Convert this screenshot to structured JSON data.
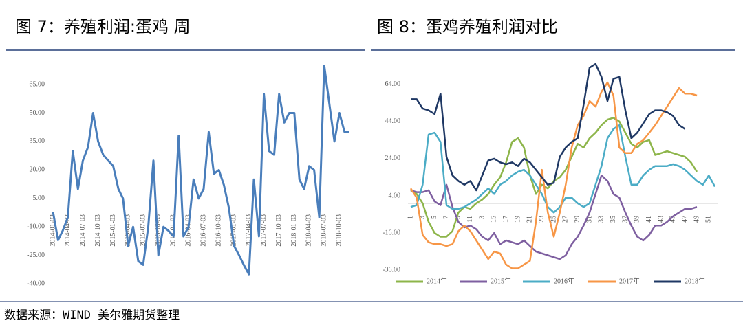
{
  "chart_data": [
    {
      "type": "line",
      "title": "图 7：养殖利润:蛋鸡 周",
      "color": "#4a7ebb",
      "x": [
        "2014-01-03",
        "2014-02-03",
        "2014-03-03",
        "2014-04-03",
        "2014-05-03",
        "2014-06-03",
        "2014-07-03",
        "2014-08-03",
        "2014-09-03",
        "2014-10-03",
        "2014-11-03",
        "2014-12-03",
        "2015-01-03",
        "2015-02-03",
        "2015-03-03",
        "2015-04-03",
        "2015-05-03",
        "2015-06-03",
        "2015-07-03",
        "2015-08-03",
        "2015-09-03",
        "2015-10-03",
        "2015-11-03",
        "2015-12-03",
        "2016-01-03",
        "2016-02-03",
        "2016-03-03",
        "2016-04-03",
        "2016-05-03",
        "2016-06-03",
        "2016-07-03",
        "2016-08-03",
        "2016-09-03",
        "2016-10-03",
        "2016-11-03",
        "2016-12-03",
        "2017-01-03",
        "2017-02-03",
        "2017-03-03",
        "2017-04-03",
        "2017-05-03",
        "2017-06-03",
        "2017-07-03",
        "2017-08-03",
        "2017-09-03",
        "2017-10-03",
        "2017-11-03",
        "2017-12-03",
        "2018-01-03",
        "2018-02-03",
        "2018-03-03",
        "2018-04-03",
        "2018-05-03",
        "2018-06-03",
        "2018-07-03",
        "2018-08-03",
        "2018-09-03",
        "2018-10-03",
        "2018-11-03",
        "2018-12-03"
      ],
      "values": [
        -2,
        -17,
        -12,
        -5,
        30,
        10,
        25,
        32,
        50,
        35,
        28,
        25,
        22,
        10,
        5,
        -20,
        -10,
        -28,
        -30,
        -10,
        25,
        -25,
        -10,
        -12,
        -15,
        38,
        -15,
        -10,
        15,
        5,
        10,
        40,
        18,
        20,
        12,
        0,
        -20,
        -25,
        -30,
        -35,
        15,
        -15,
        60,
        30,
        28,
        60,
        45,
        50,
        50,
        15,
        10,
        22,
        20,
        -5,
        75,
        55,
        35,
        50,
        40,
        40
      ],
      "xticks": [
        "2014-01-03",
        "2014-04-03",
        "2014-07-03",
        "2014-10-03",
        "2015-01-03",
        "2015-04-03",
        "2015-07-03",
        "2015-10-03",
        "2016-01-03",
        "2016-04-03",
        "2016-07-03",
        "2016-10-03",
        "2017-01-03",
        "2017-04-03",
        "2017-07-03",
        "2017-10-03",
        "2018-01-03",
        "2018-04-03",
        "2018-07-03",
        "2018-10-03"
      ],
      "ylim": [
        -40,
        77
      ],
      "yticks": [
        {
          "value": -40,
          "label": "-40.00"
        },
        {
          "value": -25,
          "label": "-25.00"
        },
        {
          "value": -10,
          "label": "-10.00"
        },
        {
          "value": 5,
          "label": "5.00"
        },
        {
          "value": 20,
          "label": "20.00"
        },
        {
          "value": 35,
          "label": "35.00"
        },
        {
          "value": 50,
          "label": "50.00"
        },
        {
          "value": 65,
          "label": "65.00"
        }
      ]
    },
    {
      "type": "line",
      "title": "图 8：蛋鸡养殖利润对比",
      "categories": [
        1,
        null,
        3,
        null,
        5,
        null,
        7,
        null,
        9,
        null,
        11,
        null,
        13,
        null,
        15,
        null,
        17,
        null,
        19,
        null,
        21,
        null,
        23,
        null,
        25,
        null,
        27,
        null,
        29,
        null,
        31,
        null,
        33,
        null,
        35,
        null,
        37,
        null,
        39,
        null,
        41,
        null,
        43,
        null,
        45,
        null,
        47,
        null,
        49,
        null,
        51,
        null
      ],
      "ylim": [
        -40,
        75
      ],
      "yticks": [
        {
          "value": -36,
          "label": "-36.00"
        },
        {
          "value": -16,
          "label": "-16.00"
        },
        {
          "value": 4,
          "label": "4.00"
        },
        {
          "value": 24,
          "label": "24.00"
        },
        {
          "value": 44,
          "label": "44.00"
        },
        {
          "value": 64,
          "label": "64.00"
        }
      ],
      "legend": "bottom",
      "series": [
        {
          "name": "2014年",
          "color": "#8db54a",
          "values": [
            7,
            5,
            0,
            -10,
            -16,
            -18,
            -18,
            -15,
            -5,
            -2,
            -3,
            0,
            2,
            5,
            10,
            14,
            22,
            33,
            35,
            30,
            15,
            5,
            10,
            8,
            12,
            14,
            18,
            25,
            32,
            30,
            35,
            38,
            42,
            45,
            46,
            44,
            38,
            32,
            30,
            33,
            34,
            26,
            27,
            28,
            27,
            26,
            25,
            22,
            17,
            null,
            null,
            null
          ]
        },
        {
          "name": "2015年",
          "color": "#7e5fa0",
          "values": [
            7,
            6,
            6,
            7,
            1,
            -1,
            10,
            -2,
            -10,
            -13,
            -12,
            -14,
            -18,
            -20,
            -16,
            -22,
            -20,
            -21,
            -22,
            -20,
            -23,
            -26,
            -27,
            -28,
            -29,
            -30,
            -28,
            -22,
            -18,
            -12,
            -5,
            5,
            15,
            12,
            5,
            3,
            -5,
            -12,
            -18,
            -20,
            -17,
            -12,
            -12,
            -10,
            -7,
            -5,
            -3,
            -3,
            -2,
            null,
            null,
            null
          ]
        },
        {
          "name": "2016年",
          "color": "#4bacc6",
          "values": [
            -2,
            -1,
            10,
            37,
            38,
            33,
            -1,
            -3,
            -3,
            -2,
            0,
            2,
            5,
            8,
            5,
            10,
            12,
            15,
            17,
            18,
            15,
            10,
            5,
            -2,
            -5,
            -2,
            3,
            3,
            0,
            -2,
            0,
            10,
            20,
            35,
            40,
            42,
            25,
            10,
            10,
            15,
            18,
            20,
            20,
            20,
            21,
            20,
            18,
            15,
            12,
            10,
            15,
            9
          ]
        },
        {
          "name": "2017年",
          "color": "#f79646",
          "values": [
            8,
            3,
            -17,
            -21,
            -22,
            -22,
            -23,
            -22,
            -15,
            -12,
            -15,
            -20,
            -25,
            -30,
            -26,
            -27,
            -33,
            -35,
            -35,
            -33,
            -31,
            -10,
            18,
            -5,
            -18,
            -5,
            10,
            30,
            42,
            47,
            55,
            52,
            60,
            65,
            58,
            30,
            27,
            27,
            32,
            34,
            38,
            42,
            47,
            52,
            57,
            62,
            59,
            59,
            58,
            null,
            null,
            null
          ]
        },
        {
          "name": "2018年",
          "color": "#1f3864",
          "values": [
            56,
            56,
            51,
            50,
            48,
            59,
            25,
            15,
            12,
            10,
            12,
            7,
            15,
            23,
            24,
            22,
            21,
            22,
            20,
            24,
            22,
            18,
            14,
            10,
            11,
            25,
            30,
            33,
            35,
            53,
            73,
            75,
            68,
            55,
            67,
            68,
            50,
            35,
            38,
            43,
            48,
            50,
            50,
            49,
            47,
            42,
            40,
            null,
            null,
            null,
            null,
            null
          ]
        }
      ]
    }
  ],
  "source": "数据来源：WIND 美尔雅期货整理"
}
